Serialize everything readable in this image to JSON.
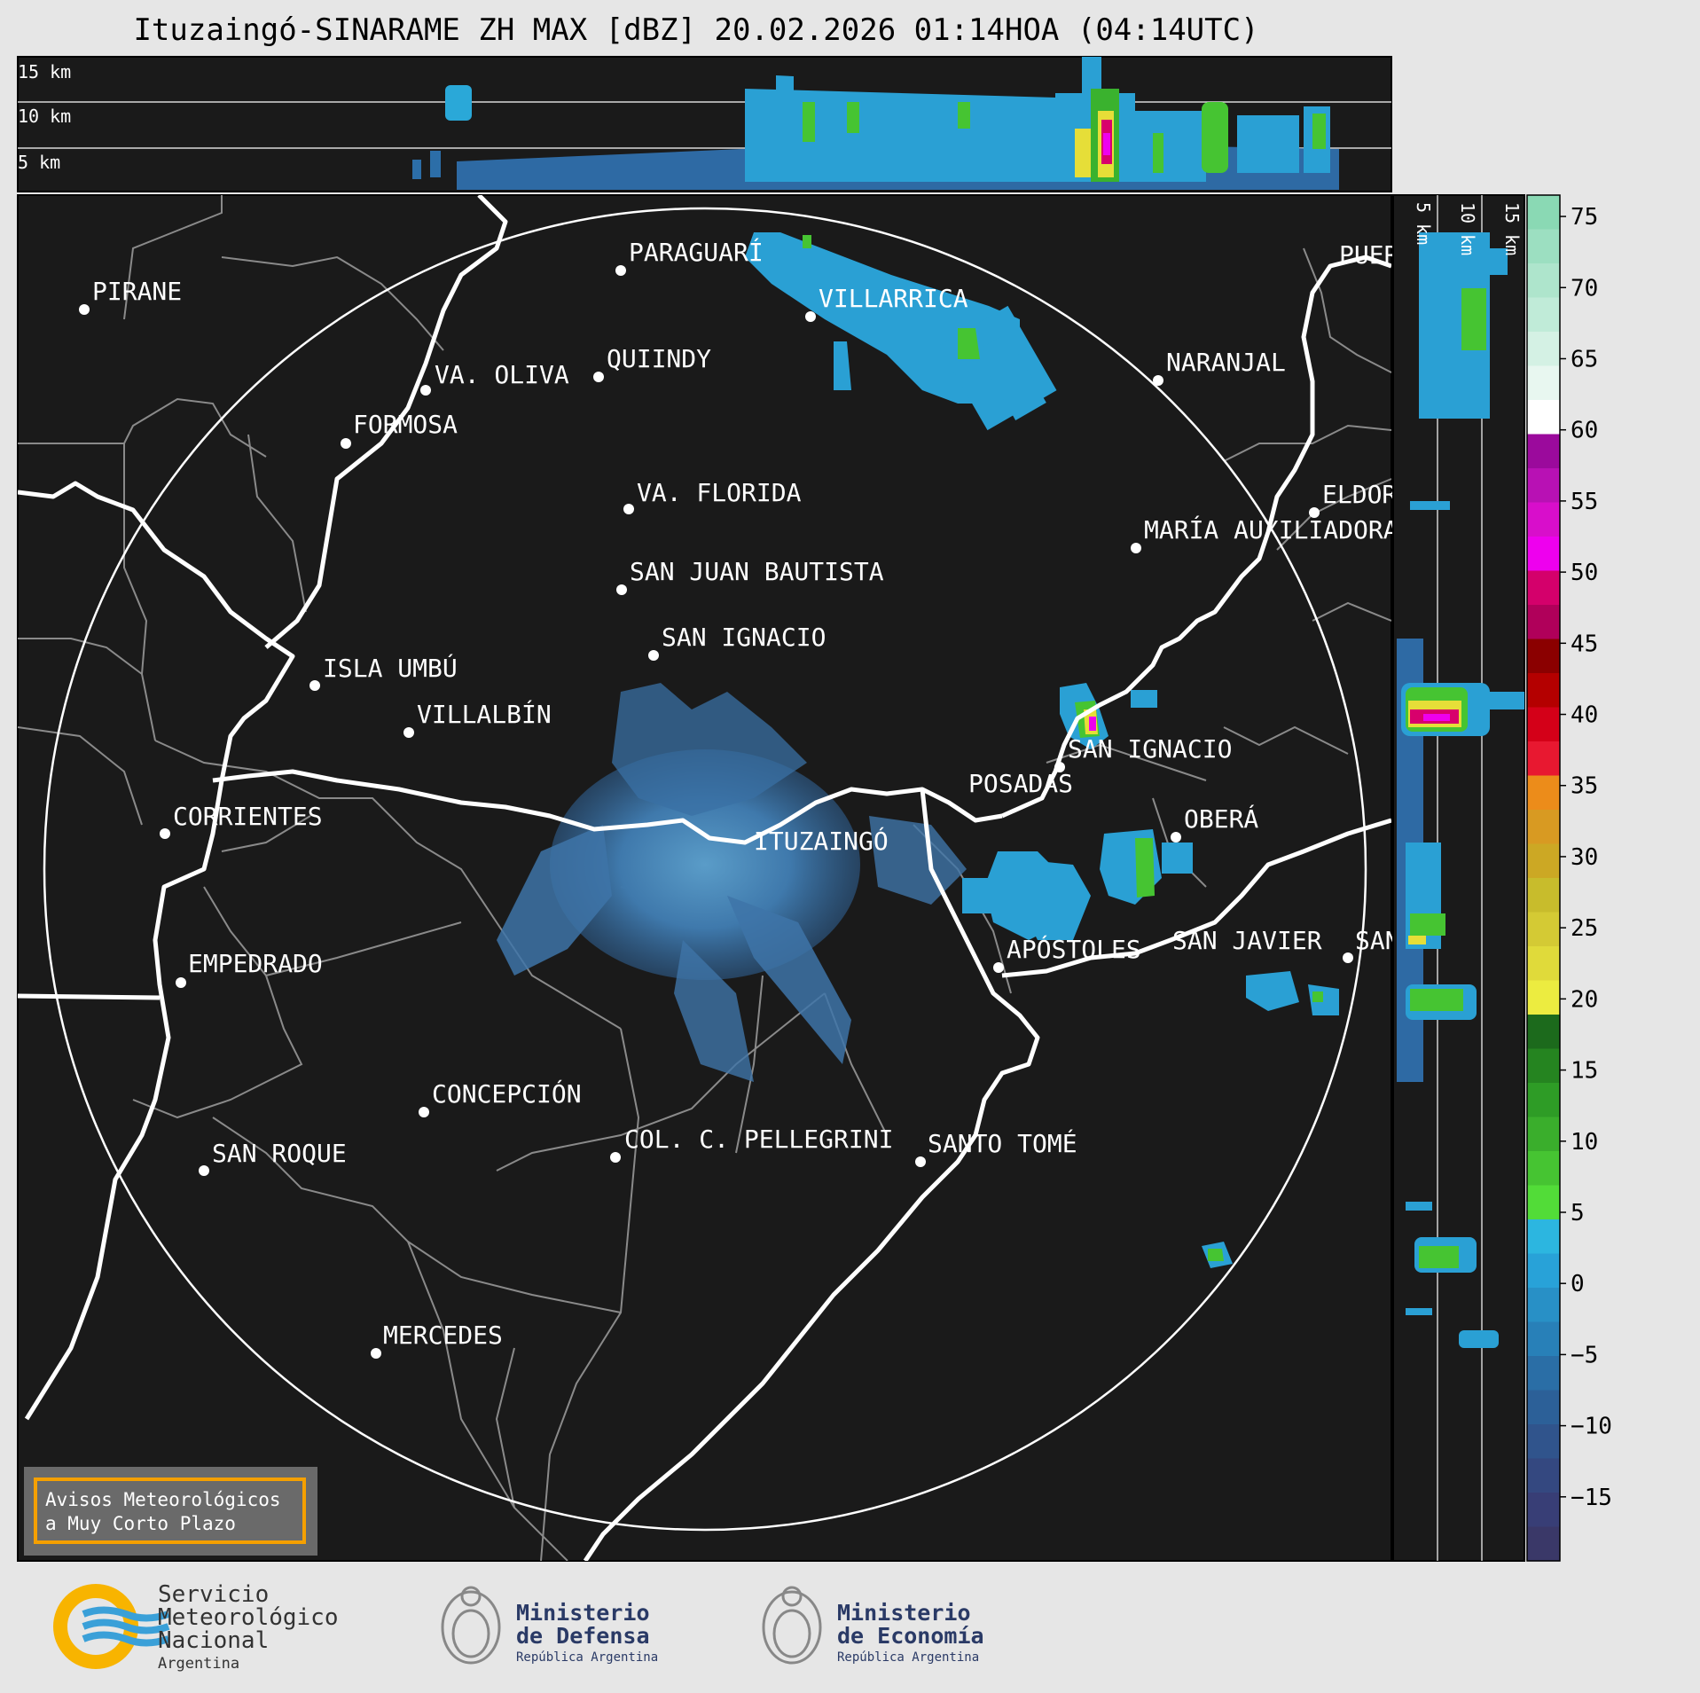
{
  "title": "Ituzaingó-SINARAME ZH MAX [dBZ] 20.02.2026 01:14HOA (04:14UTC)",
  "top_section": {
    "levels": [
      "15 km",
      "10 km",
      "5 km"
    ]
  },
  "right_section": {
    "levels": [
      "5 km",
      "10 km",
      "15 km"
    ]
  },
  "map": {
    "radar_site": "ITUZAINGÓ",
    "places": [
      {
        "key": "pirane",
        "name": "PIRANE"
      },
      {
        "key": "paraguari",
        "name": "PARAGUARÍ"
      },
      {
        "key": "villarrica",
        "name": "VILLARRICA"
      },
      {
        "key": "quiindy",
        "name": "QUIINDY"
      },
      {
        "key": "va-oliva",
        "name": "VA. OLIVA"
      },
      {
        "key": "naranjal",
        "name": "NARANJAL"
      },
      {
        "key": "formosa",
        "name": "FORMOSA"
      },
      {
        "key": "va-florida",
        "name": "VA. FLORIDA"
      },
      {
        "key": "eldorado",
        "name": "ELDORADO"
      },
      {
        "key": "maria-auxiliadora",
        "name": "MARÍA AUXILIADORA"
      },
      {
        "key": "san-juan-bautista",
        "name": "SAN JUAN BAUTISTA"
      },
      {
        "key": "san-ignacio-py",
        "name": "SAN IGNACIO"
      },
      {
        "key": "isla-umbu",
        "name": "ISLA UMBÚ"
      },
      {
        "key": "villalbin",
        "name": "VILLALBÍN"
      },
      {
        "key": "san-ignacio-ar",
        "name": "SAN IGNACIO"
      },
      {
        "key": "posadas",
        "name": "POSADAS"
      },
      {
        "key": "corrientes",
        "name": "CORRIENTES"
      },
      {
        "key": "obera",
        "name": "OBERÁ"
      },
      {
        "key": "empedrado",
        "name": "EMPEDRADO"
      },
      {
        "key": "apostoles",
        "name": "APÓSTOLES"
      },
      {
        "key": "san-javier",
        "name": "SAN JAVIER"
      },
      {
        "key": "san-vicente",
        "name": "SAN VICENTE"
      },
      {
        "key": "concepcion",
        "name": "CONCEPCIÓN"
      },
      {
        "key": "col-pellegrini",
        "name": "COL. C. PELLEGRINI"
      },
      {
        "key": "santo-tome",
        "name": "SANTO TOMÉ"
      },
      {
        "key": "san-roque",
        "name": "SAN ROQUE"
      },
      {
        "key": "mercedes",
        "name": "MERCEDES"
      },
      {
        "key": "puerto",
        "name": "PUERTO"
      }
    ]
  },
  "colorbar": {
    "ticks": [
      "75",
      "70",
      "65",
      "60",
      "55",
      "50",
      "45",
      "40",
      "35",
      "30",
      "25",
      "20",
      "15",
      "10",
      "5",
      "0",
      "−5",
      "−10",
      "−15"
    ],
    "colors": [
      "#8ad9b4",
      "#9cdfc1",
      "#aee5cc",
      "#c0ebd8",
      "#d4f1e4",
      "#e8f7f0",
      "#ffffff",
      "#9b0a9c",
      "#b811b4",
      "#d80ecb",
      "#ee00ee",
      "#d4006b",
      "#b0005a",
      "#8b0000",
      "#b40000",
      "#d40018",
      "#e81830",
      "#ec8c1a",
      "#d89a22",
      "#cca824",
      "#c8bc2c",
      "#d4ca34",
      "#e0da3a",
      "#ecec40",
      "#1c6a1c",
      "#258420",
      "#2e9c26",
      "#3aae2c",
      "#46c432",
      "#52dc38",
      "#2cb6e0",
      "#28a2d8",
      "#2890c6",
      "#2880b8",
      "#2a6ea6",
      "#2c6098",
      "#30548c",
      "#344880",
      "#383e76",
      "#3a3868"
    ]
  },
  "warning_box": {
    "line1": "Avisos Meteorológicos",
    "line2": "a Muy Corto Plazo"
  },
  "footer": {
    "smn": {
      "line1": "Servicio",
      "line2": "Meteorológico",
      "line3": "Nacional",
      "line4": "Argentina"
    },
    "defensa": {
      "line1": "Ministerio",
      "line2": "de Defensa",
      "line3": "República Argentina"
    },
    "economia": {
      "line1": "Ministerio",
      "line2": "de Economía",
      "line3": "República Argentina"
    }
  }
}
